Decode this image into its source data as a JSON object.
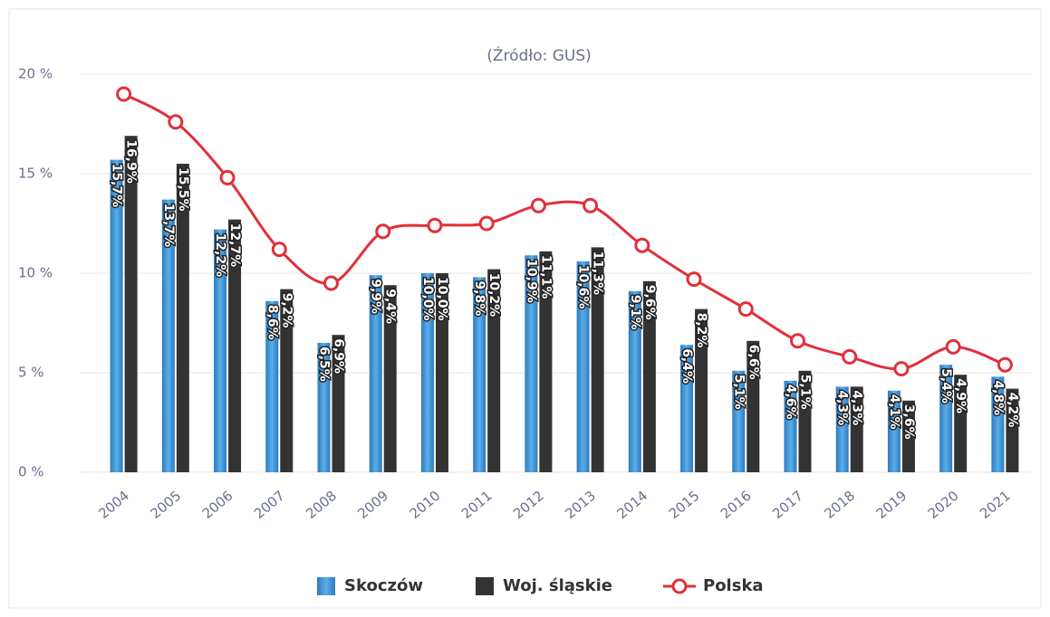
{
  "chart_data": {
    "type": "bar",
    "subtitle": "(Źródło: GUS)",
    "categories": [
      "2004",
      "2005",
      "2006",
      "2007",
      "2008",
      "2009",
      "2010",
      "2011",
      "2012",
      "2013",
      "2014",
      "2015",
      "2016",
      "2017",
      "2018",
      "2019",
      "2020",
      "2021"
    ],
    "series": [
      {
        "name": "Skoczów",
        "type": "bar",
        "color": "#3a8fd6",
        "values": [
          15.7,
          13.7,
          12.2,
          8.6,
          6.5,
          9.9,
          10.0,
          9.8,
          10.9,
          10.6,
          9.1,
          6.4,
          5.1,
          4.6,
          4.3,
          4.1,
          5.4,
          4.8
        ],
        "value_labels": [
          "15,7%",
          "13,7%",
          "12,2%",
          "8,6%",
          "6,5%",
          "9,9%",
          "10,0%",
          "9,8%",
          "10,9%",
          "10,6%",
          "9,1%",
          "6,4%",
          "5,1%",
          "4,6%",
          "4,3%",
          "4,1%",
          "5,4%",
          "4,8%"
        ]
      },
      {
        "name": "Woj. śląskie",
        "type": "bar",
        "color": "#333333",
        "values": [
          16.9,
          15.5,
          12.7,
          9.2,
          6.9,
          9.4,
          10.0,
          10.2,
          11.1,
          11.3,
          9.6,
          8.2,
          6.6,
          5.1,
          4.3,
          3.6,
          4.9,
          4.2
        ],
        "value_labels": [
          "16,9%",
          "15,5%",
          "12,7%",
          "9,2%",
          "6,9%",
          "9,4%",
          "10,0%",
          "10,2%",
          "11,1%",
          "11,3%",
          "9,6%",
          "8,2%",
          "6,6%",
          "5,1%",
          "4,3%",
          "3,6%",
          "4,9%",
          "4,2%"
        ]
      },
      {
        "name": "Polska",
        "type": "line",
        "color": "#e0303a",
        "values": [
          19.0,
          17.6,
          14.8,
          11.2,
          9.5,
          12.1,
          12.4,
          12.5,
          13.4,
          13.4,
          11.4,
          9.7,
          8.2,
          6.6,
          5.8,
          5.2,
          6.3,
          5.4
        ]
      }
    ],
    "ylim": [
      0,
      20
    ],
    "yticks": [
      {
        "value": 0,
        "label": "0 %"
      },
      {
        "value": 5,
        "label": "5 %"
      },
      {
        "value": 10,
        "label": "10 %"
      },
      {
        "value": 15,
        "label": "15 %"
      },
      {
        "value": 20,
        "label": "20 %"
      }
    ],
    "grid": true,
    "legend": "bottom"
  }
}
